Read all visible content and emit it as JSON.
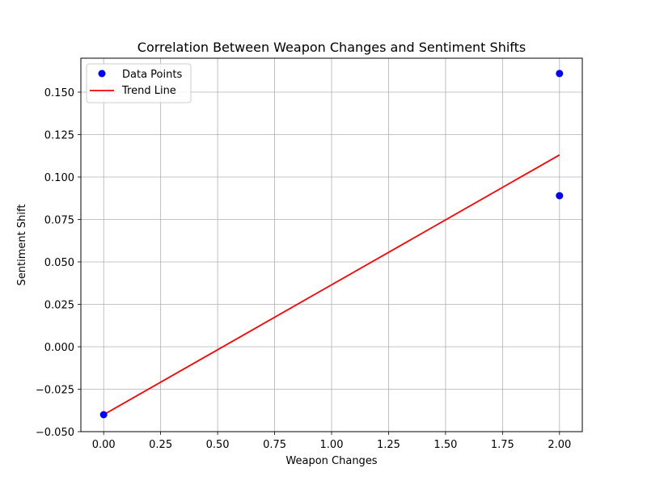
{
  "chart_data": {
    "type": "scatter",
    "title": "Correlation Between Weapon Changes and Sentiment Shifts",
    "xlabel": "Weapon Changes",
    "ylabel": "Sentiment Shift",
    "xlim": [
      -0.1,
      2.1
    ],
    "ylim": [
      -0.05,
      0.17
    ],
    "xticks": [
      0.0,
      0.25,
      0.5,
      0.75,
      1.0,
      1.25,
      1.5,
      1.75,
      2.0
    ],
    "xtick_labels": [
      "0.00",
      "0.25",
      "0.50",
      "0.75",
      "1.00",
      "1.25",
      "1.50",
      "1.75",
      "2.00"
    ],
    "yticks": [
      -0.05,
      -0.025,
      0.0,
      0.025,
      0.05,
      0.075,
      0.1,
      0.125,
      0.15
    ],
    "ytick_labels": [
      "−0.050",
      "−0.025",
      "0.000",
      "0.025",
      "0.050",
      "0.075",
      "0.100",
      "0.125",
      "0.150"
    ],
    "grid": true,
    "legend_position": "top-left",
    "series": [
      {
        "name": "Data Points",
        "kind": "scatter",
        "color": "#0000ff",
        "x": [
          0,
          2,
          2
        ],
        "y": [
          -0.04,
          0.161,
          0.089
        ]
      },
      {
        "name": "Trend Line",
        "kind": "line",
        "color": "#ff0000",
        "x": [
          0,
          2
        ],
        "y": [
          -0.04,
          0.113
        ]
      }
    ]
  }
}
